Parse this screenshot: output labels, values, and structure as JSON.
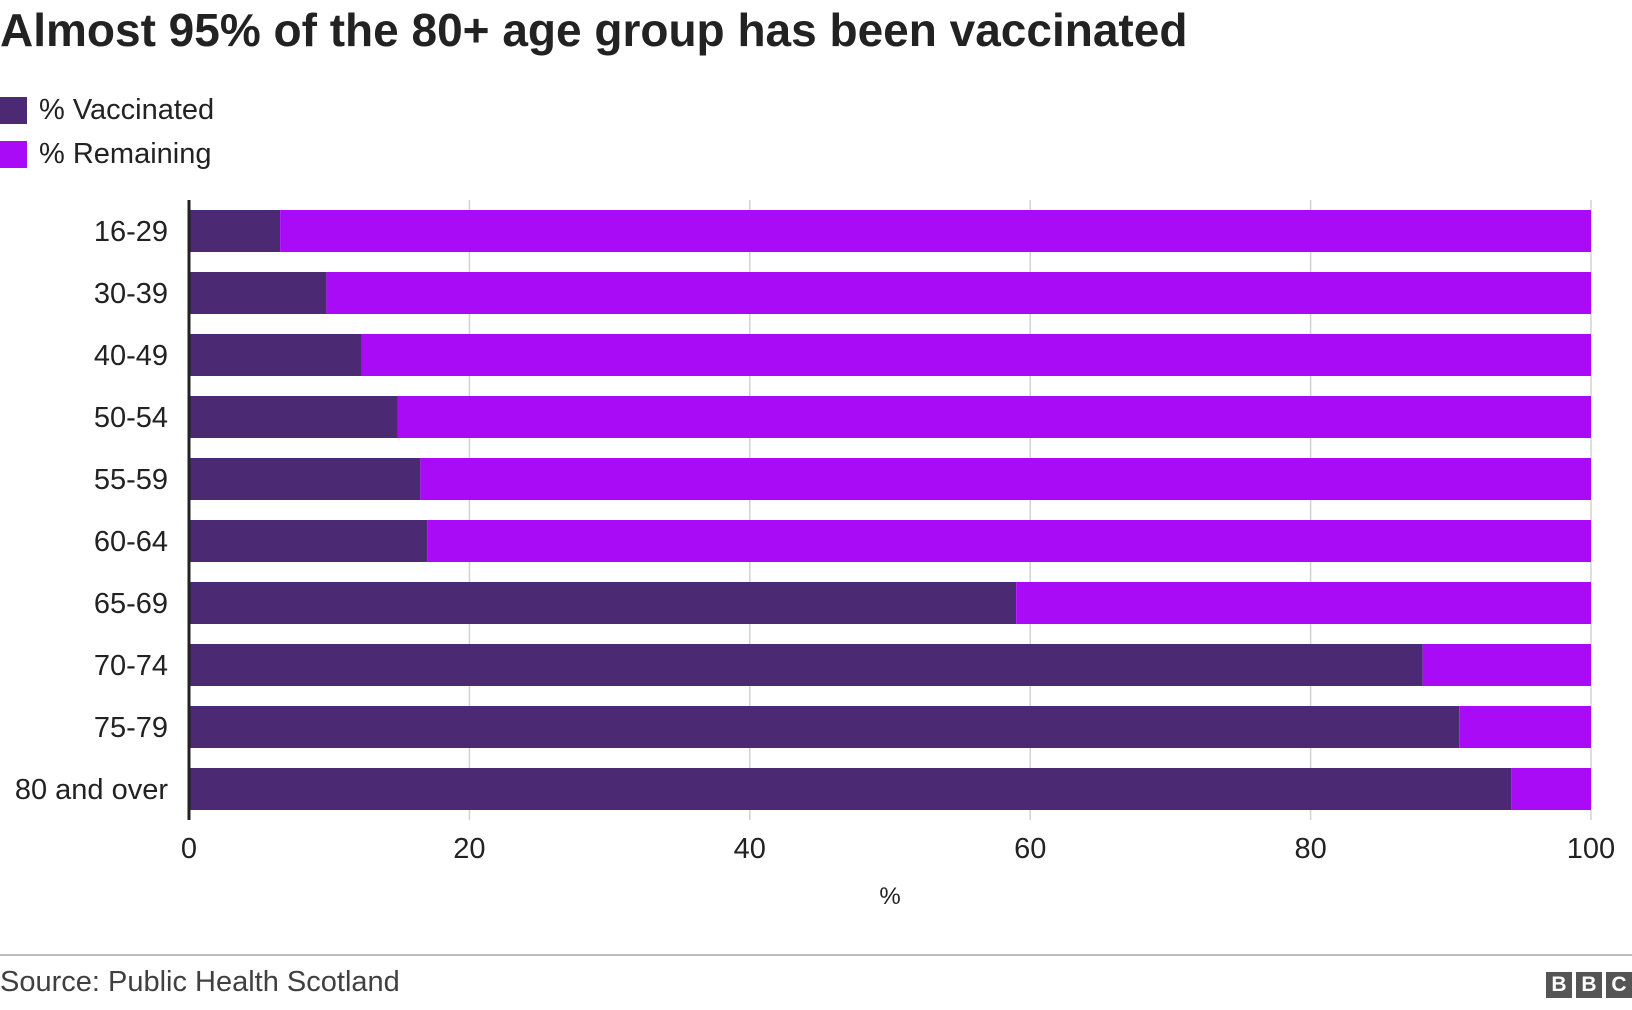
{
  "chart_data": {
    "type": "bar",
    "orientation": "horizontal",
    "stacked": true,
    "title": "Almost 95% of the 80+ age group has been vaccinated",
    "xlabel": "%",
    "ylabel": "",
    "xlim": [
      0,
      100
    ],
    "x_ticks": [
      "0",
      "20",
      "40",
      "60",
      "80",
      "100"
    ],
    "grid": true,
    "legend_position": "top-left",
    "categories": [
      "16-29",
      "30-39",
      "40-49",
      "50-54",
      "55-59",
      "60-64",
      "65-69",
      "70-74",
      "75-79",
      "80 and over"
    ],
    "series": [
      {
        "name": "% Vaccinated",
        "color": "#4b2a73",
        "values": [
          6.5,
          9.8,
          12.3,
          14.9,
          16.5,
          17.0,
          59.0,
          88.0,
          90.6,
          94.3
        ]
      },
      {
        "name": "% Remaining",
        "color": "#aa0bf7",
        "values": [
          93.5,
          90.2,
          87.7,
          85.1,
          83.5,
          83.0,
          41.0,
          12.0,
          9.4,
          5.7
        ]
      }
    ],
    "source": "Source: Public Health Scotland"
  },
  "branding": {
    "logo_letters": [
      "B",
      "B",
      "C"
    ]
  }
}
